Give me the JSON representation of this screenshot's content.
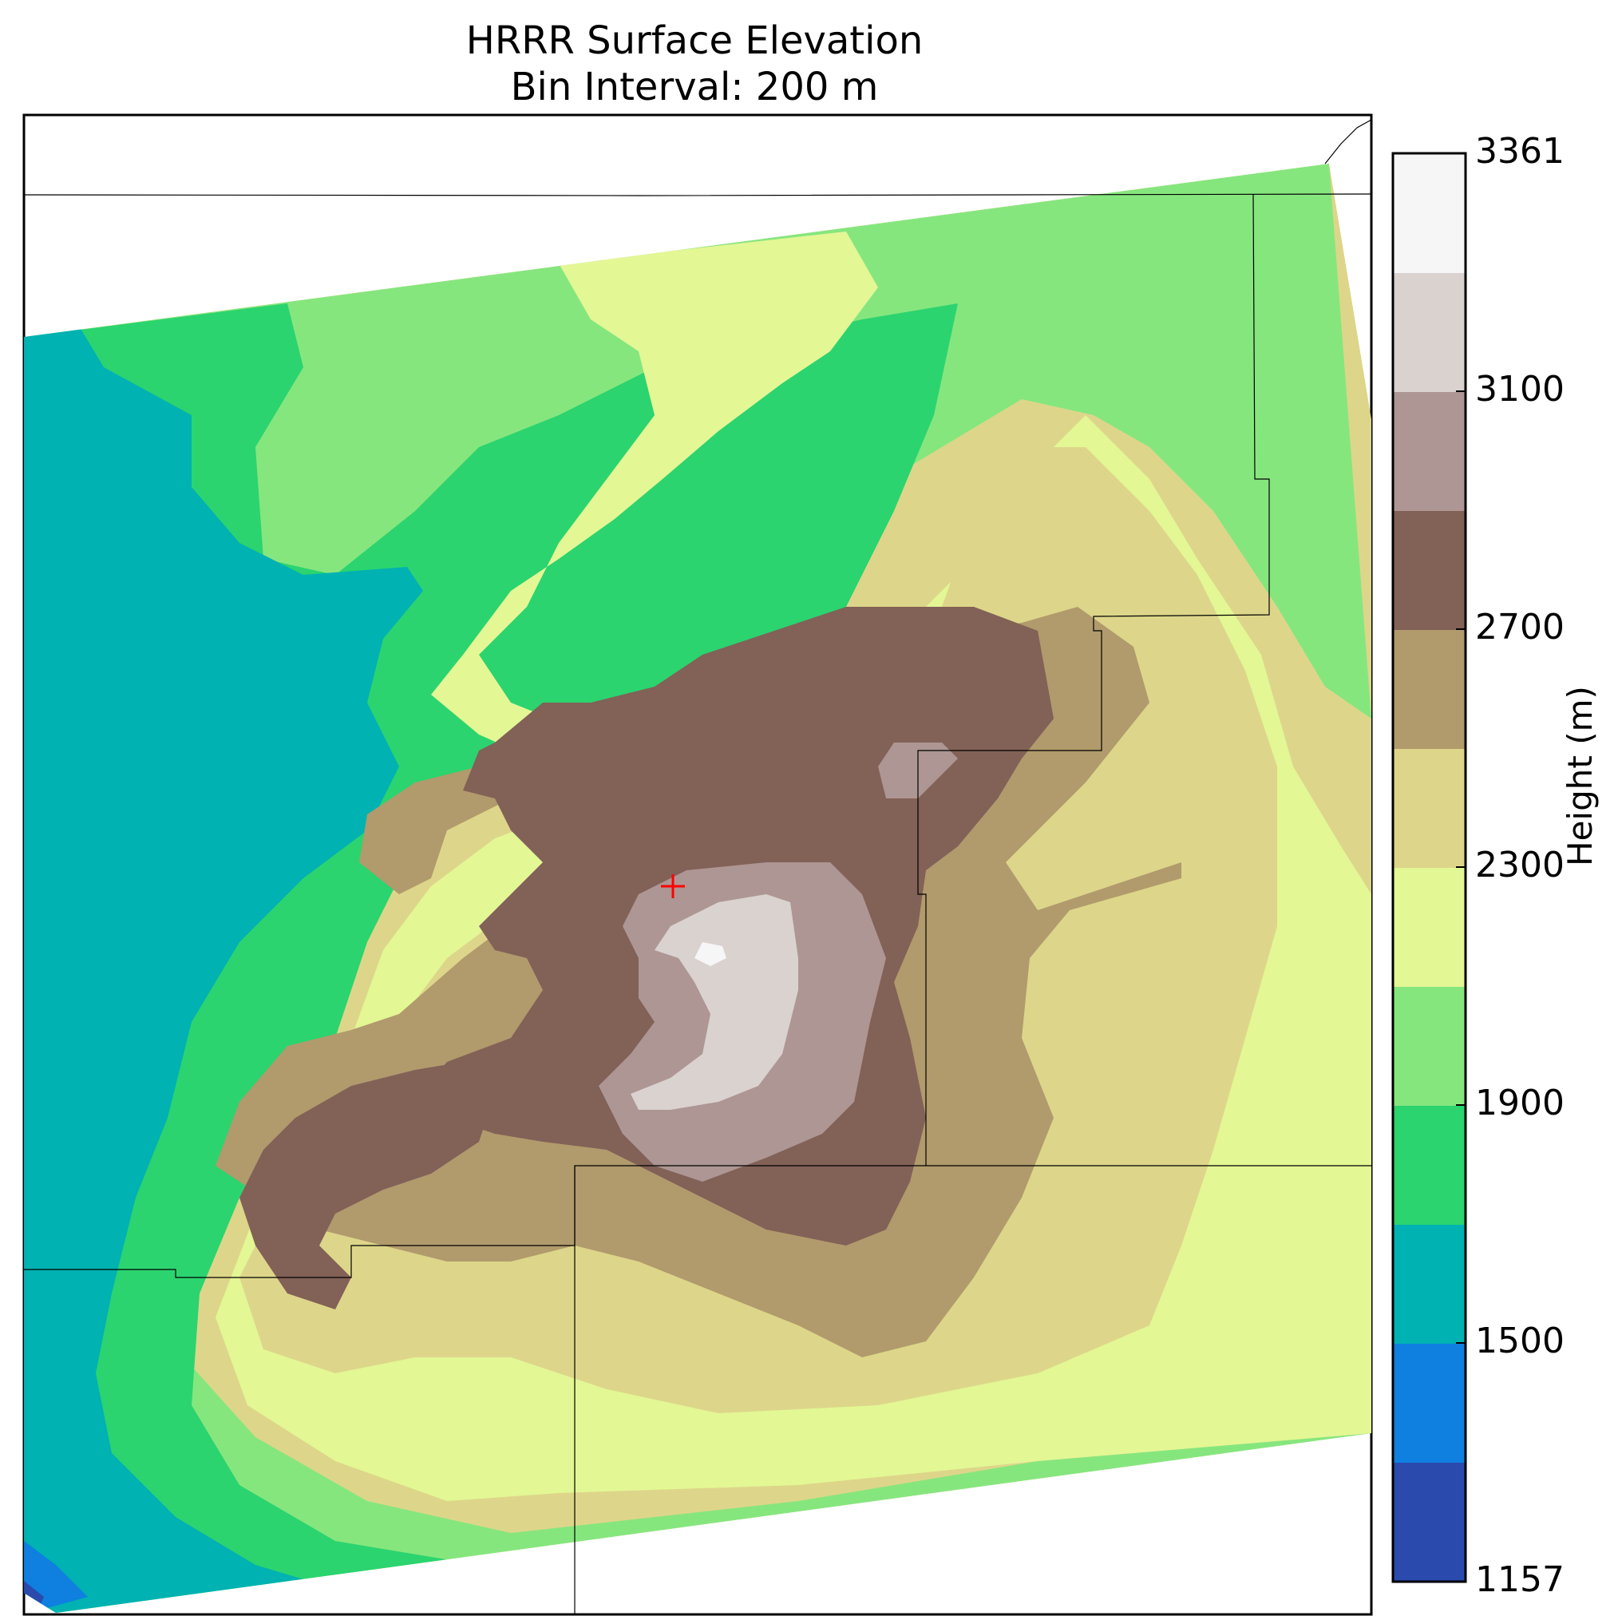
{
  "title": {
    "line1": "HRRR Surface Elevation",
    "line2": "Bin Interval: 200 m"
  },
  "colorbar": {
    "label": "Height (m)",
    "ticks": [
      "3361",
      "3100",
      "2700",
      "2300",
      "1900",
      "1500",
      "1157"
    ],
    "bins": [
      {
        "lower": 1157,
        "color": "#2a4aad"
      },
      {
        "lower": 1300,
        "color": "#0f7fe0"
      },
      {
        "lower": 1500,
        "color": "#00b2b2"
      },
      {
        "lower": 1700,
        "color": "#2bd46f"
      },
      {
        "lower": 1900,
        "color": "#86e67e"
      },
      {
        "lower": 2100,
        "color": "#e3f795"
      },
      {
        "lower": 2300,
        "color": "#ddd68a"
      },
      {
        "lower": 2500,
        "color": "#b19a6c"
      },
      {
        "lower": 2700,
        "color": "#826157"
      },
      {
        "lower": 2900,
        "color": "#ad9693"
      },
      {
        "lower": 3100,
        "color": "#dad2cf"
      },
      {
        "lower": 3300,
        "color": "#f7f6f6"
      }
    ]
  },
  "marker": {
    "symbol": "+",
    "color": "#ff0000"
  }
}
